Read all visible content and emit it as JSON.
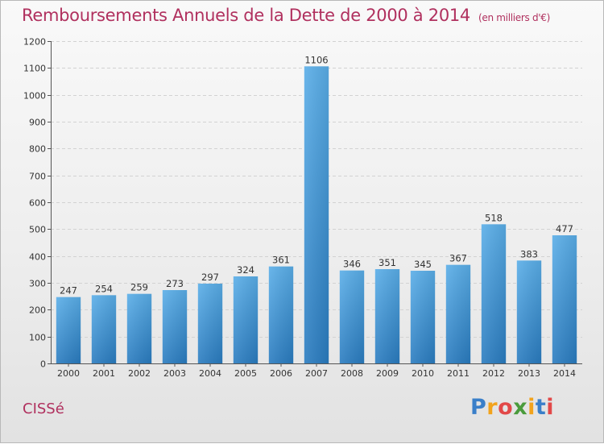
{
  "chart_data": {
    "type": "bar",
    "title": "Remboursements Annuels de la Dette de 2000 à 2014",
    "unit_note": "(en milliers d'€)",
    "categories": [
      "2000",
      "2001",
      "2002",
      "2003",
      "2004",
      "2005",
      "2006",
      "2007",
      "2008",
      "2009",
      "2010",
      "2011",
      "2012",
      "2013",
      "2014"
    ],
    "values": [
      247,
      254,
      259,
      273,
      297,
      324,
      361,
      1106,
      346,
      351,
      345,
      367,
      518,
      383,
      477
    ],
    "yticks": [
      0,
      100,
      200,
      300,
      400,
      500,
      600,
      700,
      800,
      900,
      1000,
      1100,
      1200
    ],
    "ylim": [
      0,
      1200
    ],
    "grid": true,
    "bar_color": "#3a92d8",
    "xlabel": "",
    "ylabel": ""
  },
  "footer": {
    "commune": "CISSé",
    "logo": "Proxiti"
  }
}
